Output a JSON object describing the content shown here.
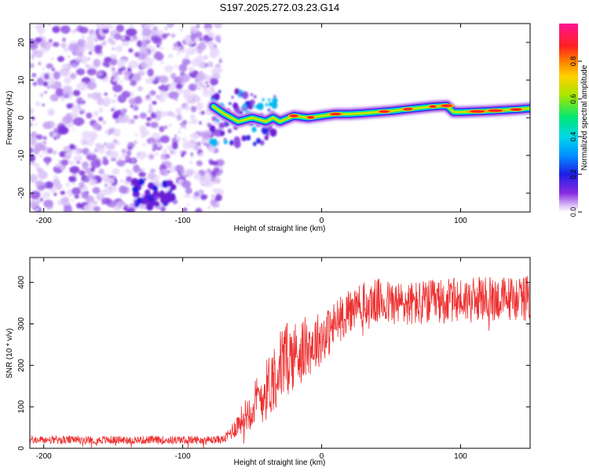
{
  "title": "S197.2025.272.03.23.G14",
  "chart_data": [
    {
      "type": "heatmap",
      "name": "spectrogram",
      "xlabel": "Height of straight line (km)",
      "ylabel": "Frequency (Hz)",
      "xlim": [
        -210,
        150
      ],
      "ylim": [
        -25,
        25
      ],
      "xticks": [
        -200,
        -100,
        0,
        100
      ],
      "xtick_labels": [
        "-200",
        "-100",
        "0",
        "100"
      ],
      "yticks": [
        -20,
        -10,
        0,
        10,
        20
      ],
      "ytick_labels": [
        "-20",
        "-10",
        "0",
        "10",
        "20"
      ],
      "colorbar": {
        "label": "Normalized spectral amplitude",
        "range": [
          0,
          1
        ],
        "ticks": [
          0,
          0.2,
          0.4,
          0.6,
          0.8
        ],
        "tick_labels": [
          "0.0",
          "0.2",
          "0.4",
          "0.6",
          "0.8"
        ],
        "colormap": "rainbow",
        "colors": [
          "#ffffff",
          "#c8a8f4",
          "#8a2be2",
          "#1e1ee6",
          "#00ccff",
          "#00e676",
          "#c8e600",
          "#ffb300",
          "#ff2020",
          "#ff1493"
        ]
      },
      "noise_region_x": [
        -210,
        -78
      ],
      "carrier_points": [
        {
          "x": -78,
          "y": 3
        },
        {
          "x": -70,
          "y": 1
        },
        {
          "x": -60,
          "y": -1
        },
        {
          "x": -50,
          "y": 0
        },
        {
          "x": -40,
          "y": -1
        },
        {
          "x": -35,
          "y": 0
        },
        {
          "x": -30,
          "y": -1
        },
        {
          "x": -20,
          "y": 0.5
        },
        {
          "x": -10,
          "y": 0
        },
        {
          "x": 0,
          "y": 0.5
        },
        {
          "x": 10,
          "y": 1
        },
        {
          "x": 20,
          "y": 1
        },
        {
          "x": 30,
          "y": 1.2
        },
        {
          "x": 40,
          "y": 1.5
        },
        {
          "x": 50,
          "y": 1.8
        },
        {
          "x": 60,
          "y": 2.2
        },
        {
          "x": 70,
          "y": 2.6
        },
        {
          "x": 80,
          "y": 3
        },
        {
          "x": 90,
          "y": 3.2
        },
        {
          "x": 95,
          "y": 1.5
        },
        {
          "x": 100,
          "y": 1.5
        },
        {
          "x": 120,
          "y": 1.8
        },
        {
          "x": 140,
          "y": 2.2
        },
        {
          "x": 150,
          "y": 2.5
        }
      ],
      "hotspots_x": [
        -20,
        -8,
        10,
        45,
        62,
        80,
        90,
        112,
        125,
        140
      ]
    },
    {
      "type": "line",
      "name": "snr",
      "xlabel": "Height of straight line (km)",
      "ylabel": "SNR (10 * v/v)",
      "xlim": [
        -210,
        150
      ],
      "ylim": [
        0,
        460
      ],
      "xticks": [
        -200,
        -100,
        0,
        100
      ],
      "xtick_labels": [
        "-200",
        "-100",
        "0",
        "100"
      ],
      "yticks": [
        0,
        100,
        200,
        300,
        400
      ],
      "ytick_labels": [
        "0",
        "100",
        "200",
        "300",
        "400"
      ],
      "color": "#ee3030",
      "series": [
        {
          "name": "SNR",
          "x": [
            -210,
            -200,
            -180,
            -160,
            -140,
            -120,
            -100,
            -90,
            -80,
            -70,
            -65,
            -60,
            -55,
            -50,
            -45,
            -40,
            -35,
            -30,
            -25,
            -20,
            -15,
            -10,
            -5,
            0,
            5,
            10,
            15,
            20,
            25,
            30,
            35,
            40,
            50,
            60,
            70,
            80,
            90,
            100,
            110,
            120,
            130,
            140,
            150
          ],
          "y": [
            20,
            20,
            20,
            20,
            20,
            20,
            20,
            20,
            20,
            22,
            40,
            60,
            80,
            100,
            120,
            140,
            170,
            200,
            215,
            225,
            235,
            245,
            255,
            268,
            280,
            300,
            318,
            330,
            340,
            345,
            350,
            355,
            350,
            348,
            350,
            352,
            355,
            358,
            358,
            360,
            360,
            362,
            362
          ],
          "noise_amplitude": [
            10,
            10,
            10,
            10,
            10,
            10,
            10,
            10,
            10,
            10,
            20,
            30,
            40,
            55,
            65,
            75,
            85,
            90,
            90,
            85,
            80,
            75,
            70,
            65,
            60,
            60,
            55,
            55,
            55,
            55,
            55,
            55,
            55,
            55,
            55,
            55,
            55,
            55,
            55,
            55,
            55,
            55,
            55
          ]
        }
      ]
    }
  ]
}
